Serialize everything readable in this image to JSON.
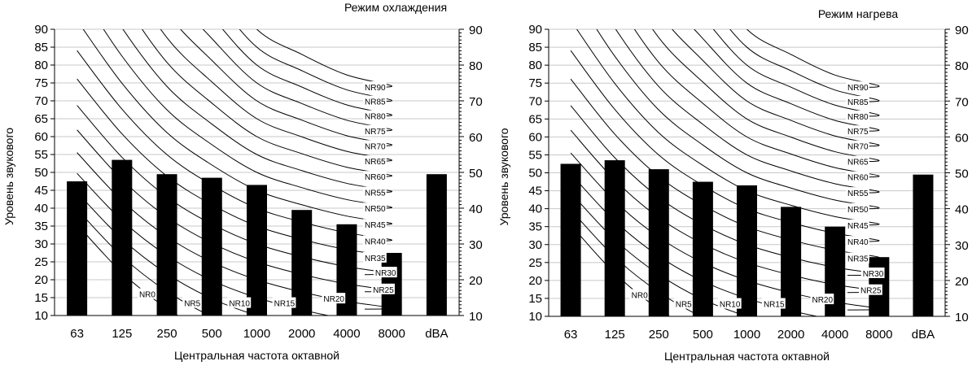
{
  "chart_data": [
    {
      "type": "bar",
      "title": "Режим охлаждения",
      "xlabel": "Центральная частота октавной",
      "ylabel": "Уровень звукового",
      "categories": [
        "63",
        "125",
        "250",
        "500",
        "1000",
        "2000",
        "4000",
        "8000",
        "dBA"
      ],
      "values": [
        47.5,
        53.5,
        49.5,
        48.5,
        46.5,
        39.5,
        35.5,
        27.5,
        49.5
      ],
      "ylim": [
        10,
        90
      ],
      "yticks": [
        "10",
        "15",
        "20",
        "25",
        "30",
        "35",
        "40",
        "45",
        "50",
        "55",
        "60",
        "65",
        "70",
        "75",
        "80",
        "85",
        "90"
      ],
      "y2ticks": [
        "10",
        "20",
        "30",
        "40",
        "50",
        "60",
        "70",
        "80",
        "90"
      ],
      "grid": true,
      "curve_labels": [
        "NR0",
        "NR5",
        "NR10",
        "NR15",
        "NR20",
        "NR25",
        "NR30",
        "NR35",
        "NR40",
        "NR45",
        "NR50",
        "NR55",
        "NR60",
        "NR65",
        "NR70",
        "NR75",
        "NR80",
        "NR85",
        "NR90"
      ]
    },
    {
      "type": "bar",
      "title": "Режим нагрева",
      "xlabel": "Центральная частота октавной",
      "ylabel": "Уровень звукового",
      "categories": [
        "63",
        "125",
        "250",
        "500",
        "1000",
        "2000",
        "4000",
        "8000",
        "dBA"
      ],
      "values": [
        52.5,
        53.5,
        51,
        47.5,
        46.5,
        40.5,
        35,
        26.5,
        49.5
      ],
      "ylim": [
        10,
        90
      ],
      "yticks": [
        "10",
        "15",
        "20",
        "25",
        "30",
        "35",
        "40",
        "45",
        "50",
        "55",
        "60",
        "65",
        "70",
        "75",
        "80",
        "85",
        "90"
      ],
      "y2ticks": [
        "10",
        "20",
        "30",
        "40",
        "50",
        "60",
        "70",
        "80",
        "90"
      ],
      "grid": true,
      "curve_labels": [
        "NR0",
        "NR5",
        "NR10",
        "NR15",
        "NR20",
        "NR25",
        "NR30",
        "NR35",
        "NR40",
        "NR45",
        "NR50",
        "NR55",
        "NR60",
        "NR65",
        "NR70",
        "NR75",
        "NR80",
        "NR85",
        "NR90"
      ]
    }
  ]
}
